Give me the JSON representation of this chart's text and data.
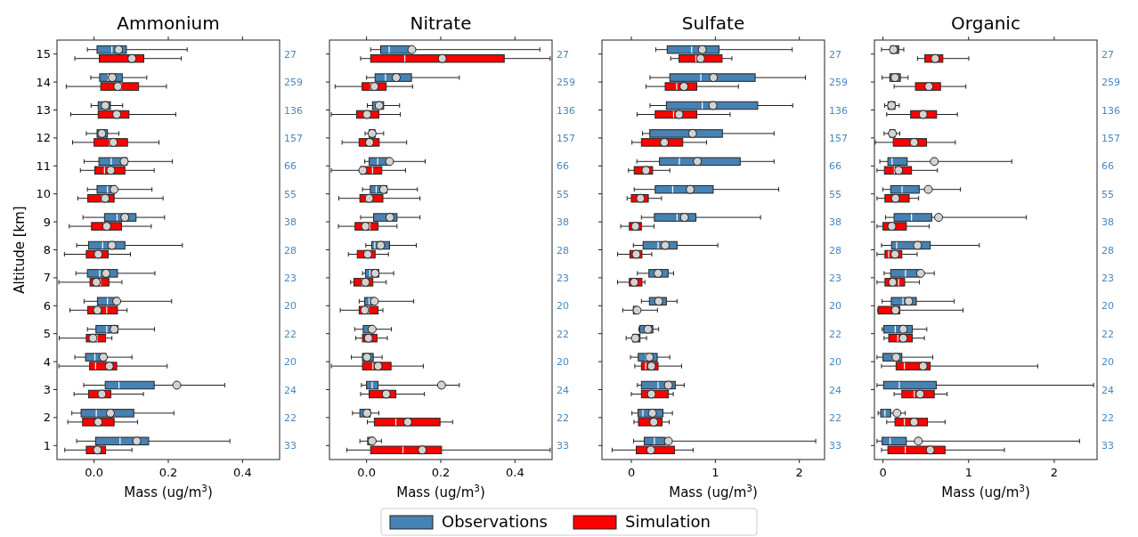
{
  "chart_data": [
    {
      "type": "box",
      "title": "Ammonium",
      "xlabel": "Mass (ug/m$^{3}$)",
      "ylabel": "Altitude [km]",
      "orientation": "horizontal",
      "legend": "bottom",
      "categories": [
        "15",
        "14",
        "13",
        "12",
        "11",
        "10",
        "9",
        "8",
        "7",
        "6",
        "5",
        "4",
        "3",
        "2",
        "1"
      ],
      "xlim": [
        -0.1,
        0.5
      ],
      "xticks": [
        {
          "value": 0,
          "label": "0.0"
        },
        0.2,
        0.4
      ],
      "series": [
        {
          "name": "Observations",
          "color": "#4682b4",
          "boxes": [
            {
              "low": -0.018,
              "q1": 0.008,
              "median": 0.048,
              "q3": 0.087,
              "high": 0.251,
              "mean": 0.066
            },
            {
              "low": -0.009,
              "q1": 0.015,
              "median": 0.038,
              "q3": 0.076,
              "high": 0.142,
              "mean": 0.049
            },
            {
              "low": -0.008,
              "q1": 0.011,
              "median": 0.027,
              "q3": 0.044,
              "high": 0.077,
              "mean": 0.03
            },
            {
              "low": -0.021,
              "q1": 0.008,
              "median": 0.019,
              "q3": 0.036,
              "high": 0.067,
              "mean": 0.021
            },
            {
              "low": -0.027,
              "q1": 0.013,
              "median": 0.046,
              "q3": 0.089,
              "high": 0.211,
              "mean": 0.081
            },
            {
              "low": -0.018,
              "q1": 0.008,
              "median": 0.036,
              "q3": 0.057,
              "high": 0.156,
              "mean": 0.054
            },
            {
              "low": -0.03,
              "q1": 0.028,
              "median": 0.062,
              "q3": 0.113,
              "high": 0.19,
              "mean": 0.083
            },
            {
              "low": -0.047,
              "q1": -0.015,
              "median": 0.023,
              "q3": 0.083,
              "high": 0.238,
              "mean": 0.048
            },
            {
              "low": -0.049,
              "q1": -0.018,
              "median": 0.015,
              "q3": 0.063,
              "high": 0.164,
              "mean": 0.032
            },
            {
              "low": -0.027,
              "q1": 0.009,
              "median": 0.036,
              "q3": 0.065,
              "high": 0.209,
              "mean": 0.061
            },
            {
              "low": -0.018,
              "q1": 0.005,
              "median": 0.034,
              "q3": 0.064,
              "high": 0.163,
              "mean": 0.054
            },
            {
              "low": -0.052,
              "q1": -0.023,
              "median": 0.002,
              "q3": 0.032,
              "high": 0.102,
              "mean": 0.025
            },
            {
              "low": -0.028,
              "q1": 0.03,
              "median": 0.067,
              "q3": 0.162,
              "high": 0.352,
              "mean": 0.223
            },
            {
              "low": -0.06,
              "q1": -0.035,
              "median": 0.006,
              "q3": 0.107,
              "high": 0.215,
              "mean": 0.044
            },
            {
              "low": -0.047,
              "q1": 0.004,
              "median": 0.07,
              "q3": 0.147,
              "high": 0.366,
              "mean": 0.115
            }
          ]
        },
        {
          "name": "Simulation",
          "color": "#ff0000",
          "boxes": [
            {
              "low": -0.052,
              "q1": 0.014,
              "median": 0.1,
              "q3": 0.134,
              "high": 0.235,
              "mean": 0.102
            },
            {
              "low": -0.075,
              "q1": 0.018,
              "median": 0.073,
              "q3": 0.12,
              "high": 0.195,
              "mean": 0.064
            },
            {
              "low": -0.063,
              "q1": 0.011,
              "median": 0.057,
              "q3": 0.094,
              "high": 0.22,
              "mean": 0.061
            },
            {
              "low": -0.058,
              "q1": 0,
              "median": 0.042,
              "q3": 0.09,
              "high": 0.175,
              "mean": 0.052
            },
            {
              "low": -0.037,
              "q1": 0.002,
              "median": 0.028,
              "q3": 0.083,
              "high": 0.162,
              "mean": 0.045
            },
            {
              "low": -0.044,
              "q1": -0.017,
              "median": 0.021,
              "q3": 0.054,
              "high": 0.186,
              "mean": 0.03
            },
            {
              "low": -0.067,
              "q1": -0.007,
              "median": 0.027,
              "q3": 0.074,
              "high": 0.154,
              "mean": 0.034
            },
            {
              "low": -0.08,
              "q1": -0.021,
              "median": 0.008,
              "q3": 0.038,
              "high": 0.098,
              "mean": 0.011
            },
            {
              "low": -0.095,
              "q1": -0.011,
              "median": 0.017,
              "q3": 0.04,
              "high": 0.075,
              "mean": 0.006
            },
            {
              "low": -0.065,
              "q1": -0.017,
              "median": 0.034,
              "q3": 0.063,
              "high": 0.089,
              "mean": 0.009
            },
            {
              "low": -0.094,
              "q1": -0.021,
              "median": 0.008,
              "q3": 0.031,
              "high": 0.048,
              "mean": -0.003
            },
            {
              "low": -0.095,
              "q1": -0.012,
              "median": 0.004,
              "q3": 0.061,
              "high": 0.197,
              "mean": 0.041
            },
            {
              "low": -0.054,
              "q1": -0.015,
              "median": 0.015,
              "q3": 0.045,
              "high": 0.133,
              "mean": 0.021
            },
            {
              "low": -0.071,
              "q1": -0.031,
              "median": 0.011,
              "q3": 0.054,
              "high": 0.117,
              "mean": 0.011
            },
            {
              "low": -0.079,
              "q1": -0.021,
              "median": 0.008,
              "q3": 0.031,
              "high": 0.102,
              "mean": 0.009
            }
          ]
        }
      ],
      "annotations": [
        "27",
        "259",
        "136",
        "157",
        "66",
        "55",
        "38",
        "28",
        "23",
        "20",
        "22",
        "20",
        "24",
        "22",
        "33"
      ]
    },
    {
      "type": "box",
      "title": "Nitrate",
      "xlabel": "Mass (ug/m$^{3}$)",
      "orientation": "horizontal",
      "tick_labels": "x",
      "categories": [
        "15",
        "14",
        "13",
        "12",
        "11",
        "10",
        "9",
        "8",
        "7",
        "6",
        "5",
        "4",
        "3",
        "2",
        "1"
      ],
      "xlim": [
        -0.1,
        0.5
      ],
      "xticks": [
        {
          "value": 0,
          "label": "0.0"
        },
        0.2,
        0.4
      ],
      "series": [
        {
          "color": "#4682b4",
          "boxes": [
            {
              "low": 0.011,
              "q1": 0.038,
              "median": 0.061,
              "q3": 0.118,
              "high": 0.467,
              "mean": 0.122
            },
            {
              "low": 0,
              "q1": 0.023,
              "median": 0.051,
              "q3": 0.121,
              "high": 0.25,
              "mean": 0.08
            },
            {
              "low": 0.002,
              "q1": 0.016,
              "median": 0.026,
              "q3": 0.046,
              "high": 0.089,
              "mean": 0.034
            },
            {
              "low": -0.004,
              "q1": 0.007,
              "median": 0.015,
              "q3": 0.023,
              "high": 0.046,
              "mean": 0.015
            },
            {
              "low": -0.005,
              "q1": 0.007,
              "median": 0.03,
              "q3": 0.062,
              "high": 0.158,
              "mean": 0.062
            },
            {
              "low": -0.011,
              "q1": 0.01,
              "median": 0.026,
              "q3": 0.055,
              "high": 0.137,
              "mean": 0.046
            },
            {
              "low": -0.016,
              "q1": 0.019,
              "median": 0.064,
              "q3": 0.082,
              "high": 0.144,
              "mean": 0.063
            },
            {
              "low": -0.002,
              "q1": 0.014,
              "median": 0.022,
              "q3": 0.062,
              "high": 0.134,
              "mean": 0.038
            },
            {
              "low": -0.011,
              "q1": -0.003,
              "median": 0.009,
              "q3": 0.033,
              "high": 0.073,
              "mean": 0.023
            },
            {
              "low": -0.02,
              "q1": -0.005,
              "median": 0.007,
              "q3": 0.018,
              "high": 0.127,
              "mean": 0.021
            },
            {
              "low": -0.032,
              "q1": -0.009,
              "median": 0.011,
              "q3": 0.018,
              "high": 0.067,
              "mean": 0.015
            },
            {
              "low": -0.041,
              "q1": -0.011,
              "median": -0.001,
              "q3": 0.018,
              "high": 0.042,
              "mean": 0.001
            },
            {
              "low": -0.014,
              "q1": 0,
              "median": 0.015,
              "q3": 0.031,
              "high": 0.25,
              "mean": 0.202
            },
            {
              "low": -0.038,
              "q1": -0.018,
              "median": -0.005,
              "q3": 0.01,
              "high": 0.033,
              "mean": 0.001
            },
            {
              "low": -0.018,
              "q1": 0.003,
              "median": 0.009,
              "q3": 0.018,
              "high": 0.04,
              "mean": 0.015
            }
          ]
        },
        {
          "color": "#ff0000",
          "boxes": [
            {
              "low": -0.016,
              "q1": 0.011,
              "median": 0.103,
              "q3": 0.371,
              "high": 0.495,
              "mean": 0.204
            },
            {
              "low": -0.085,
              "q1": -0.012,
              "median": 0.011,
              "q3": 0.053,
              "high": 0.124,
              "mean": 0.021
            },
            {
              "low": -0.095,
              "q1": -0.027,
              "median": -0.005,
              "q3": 0.033,
              "high": 0.091,
              "mean": 0.001
            },
            {
              "low": -0.066,
              "q1": -0.02,
              "median": 0.003,
              "q3": 0.034,
              "high": 0.108,
              "mean": 0.008
            },
            {
              "low": -0.095,
              "q1": -0.016,
              "median": 0.016,
              "q3": 0.041,
              "high": 0.105,
              "mean": -0.01
            },
            {
              "low": -0.075,
              "q1": -0.018,
              "median": -0.001,
              "q3": 0.044,
              "high": 0.144,
              "mean": 0.007
            },
            {
              "low": -0.076,
              "q1": -0.031,
              "median": 0.009,
              "q3": 0.031,
              "high": 0.082,
              "mean": -0.003
            },
            {
              "low": -0.049,
              "q1": -0.025,
              "median": 0.003,
              "q3": 0.023,
              "high": 0.059,
              "mean": 0.003
            },
            {
              "low": -0.043,
              "q1": -0.034,
              "median": -0.012,
              "q3": 0.017,
              "high": 0.053,
              "mean": -0.003
            },
            {
              "low": -0.071,
              "q1": -0.02,
              "median": 0.005,
              "q3": 0.031,
              "high": 0.044,
              "mean": -0.005
            },
            {
              "low": -0.029,
              "q1": -0.011,
              "median": 0.007,
              "q3": 0.028,
              "high": 0.056,
              "mean": 0.005
            },
            {
              "low": -0.095,
              "q1": -0.011,
              "median": 0.017,
              "q3": 0.066,
              "high": 0.153,
              "mean": 0.031
            },
            {
              "low": -0.016,
              "q1": 0.007,
              "median": 0.049,
              "q3": 0.079,
              "high": 0.156,
              "mean": 0.053
            },
            {
              "low": 0.002,
              "q1": 0.021,
              "median": 0.079,
              "q3": 0.198,
              "high": 0.232,
              "mean": 0.111
            },
            {
              "low": -0.053,
              "q1": 0.011,
              "median": 0.098,
              "q3": 0.202,
              "high": 0.495,
              "mean": 0.15
            }
          ]
        }
      ],
      "annotations": [
        "27",
        "259",
        "136",
        "157",
        "66",
        "55",
        "38",
        "28",
        "23",
        "20",
        "22",
        "20",
        "24",
        "22",
        "33"
      ]
    },
    {
      "type": "box",
      "title": "Sulfate",
      "xlabel": "Mass (ug/m$^{3}$)",
      "orientation": "horizontal",
      "tick_labels": "x",
      "categories": [
        "15",
        "14",
        "13",
        "12",
        "11",
        "10",
        "9",
        "8",
        "7",
        "6",
        "5",
        "4",
        "3",
        "2",
        "1"
      ],
      "xlim": [
        -0.35,
        2.3
      ],
      "xticks": [
        0,
        1,
        2
      ],
      "series": [
        {
          "color": "#4682b4",
          "boxes": [
            {
              "low": 0.291,
              "q1": 0.427,
              "median": 0.718,
              "q3": 1.043,
              "high": 1.915,
              "mean": 0.844
            },
            {
              "low": 0.222,
              "q1": 0.458,
              "median": 0.827,
              "q3": 1.474,
              "high": 2.072,
              "mean": 0.978
            },
            {
              "low": 0.222,
              "q1": 0.417,
              "median": 0.844,
              "q3": 1.504,
              "high": 1.921,
              "mean": 0.971
            },
            {
              "low": 0.133,
              "q1": 0.219,
              "median": 0.718,
              "q3": 1.084,
              "high": 1.699,
              "mean": 0.728
            },
            {
              "low": 0.065,
              "q1": 0.335,
              "median": 0.571,
              "q3": 1.296,
              "high": 1.699,
              "mean": 0.786
            },
            {
              "low": 0.034,
              "q1": 0.284,
              "median": 0.492,
              "q3": 0.974,
              "high": 1.754,
              "mean": 0.701
            },
            {
              "low": 0.12,
              "q1": 0.274,
              "median": 0.544,
              "q3": 0.769,
              "high": 1.538,
              "mean": 0.632
            },
            {
              "low": 0.024,
              "q1": 0.14,
              "median": 0.318,
              "q3": 0.544,
              "high": 1.029,
              "mean": 0.403
            },
            {
              "low": 0.072,
              "q1": 0.209,
              "median": 0.325,
              "q3": 0.438,
              "high": 0.503,
              "mean": 0.318
            },
            {
              "low": 0.12,
              "q1": 0.215,
              "median": 0.325,
              "q3": 0.417,
              "high": 0.544,
              "mean": 0.325
            },
            {
              "low": 0.089,
              "q1": 0.099,
              "median": 0.171,
              "q3": 0.256,
              "high": 0.325,
              "mean": 0.198
            },
            {
              "low": -0.01,
              "q1": 0.082,
              "median": 0.171,
              "q3": 0.308,
              "high": 0.458,
              "mean": 0.215
            },
            {
              "low": 0.072,
              "q1": 0.12,
              "median": 0.318,
              "q3": 0.523,
              "high": 0.629,
              "mean": 0.441
            },
            {
              "low": 0.007,
              "q1": 0.079,
              "median": 0.137,
              "q3": 0.376,
              "high": 0.489,
              "mean": 0.25
            },
            {
              "low": 0.027,
              "q1": 0.154,
              "median": 0.274,
              "q3": 0.403,
              "high": 2.195,
              "mean": 0.441
            }
          ]
        },
        {
          "color": "#ff0000",
          "boxes": [
            {
              "low": 0.468,
              "q1": 0.568,
              "median": 0.769,
              "q3": 1.08,
              "high": 1.197,
              "mean": 0.824
            },
            {
              "low": 0.174,
              "q1": 0.403,
              "median": 0.54,
              "q3": 0.779,
              "high": 1.275,
              "mean": 0.626
            },
            {
              "low": 0.068,
              "q1": 0.284,
              "median": 0.503,
              "q3": 0.779,
              "high": 1.176,
              "mean": 0.568
            },
            {
              "low": 0.007,
              "q1": 0.12,
              "median": 0.369,
              "q3": 0.612,
              "high": 0.896,
              "mean": 0.393
            },
            {
              "low": -0.034,
              "q1": 0.034,
              "median": 0.154,
              "q3": 0.253,
              "high": 0.458,
              "mean": 0.174
            },
            {
              "low": -0.051,
              "q1": 0,
              "median": 0.085,
              "q3": 0.202,
              "high": 0.359,
              "mean": 0.109
            },
            {
              "low": -0.126,
              "q1": -0.024,
              "median": 0.051,
              "q3": 0.12,
              "high": 0.27,
              "mean": 0.048
            },
            {
              "low": -0.164,
              "q1": -0.017,
              "median": 0.051,
              "q3": 0.126,
              "high": 0.243,
              "mean": 0.058
            },
            {
              "low": -0.164,
              "q1": -0.024,
              "median": 0.034,
              "q3": 0.126,
              "high": 0.161,
              "mean": 0.034
            },
            {
              "low": -0.103,
              "q1": 0.024,
              "median": 0.051,
              "q3": 0.062,
              "high": 0.311,
              "mean": 0.068
            },
            {
              "low": -0.062,
              "q1": 0.017,
              "median": 0.051,
              "q3": 0.103,
              "high": 0.181,
              "mean": 0.048
            },
            {
              "low": 0.041,
              "q1": 0.12,
              "median": 0.171,
              "q3": 0.318,
              "high": 0.598,
              "mean": 0.239
            },
            {
              "low": 0,
              "q1": 0.12,
              "median": 0.239,
              "q3": 0.441,
              "high": 0.499,
              "mean": 0.239
            },
            {
              "low": 0.031,
              "q1": 0.085,
              "median": 0.239,
              "q3": 0.366,
              "high": 0.451,
              "mean": 0.267
            },
            {
              "low": -0.229,
              "q1": 0.058,
              "median": 0.205,
              "q3": 0.513,
              "high": 0.735,
              "mean": 0.232
            }
          ]
        }
      ],
      "annotations": [
        "27",
        "259",
        "136",
        "157",
        "66",
        "55",
        "38",
        "28",
        "23",
        "20",
        "22",
        "20",
        "24",
        "22",
        "33"
      ]
    },
    {
      "type": "box",
      "title": "Organic",
      "xlabel": "Mass (ug/m$^{3}$)",
      "orientation": "horizontal",
      "tick_labels": "x",
      "categories": [
        "15",
        "14",
        "13",
        "12",
        "11",
        "10",
        "9",
        "8",
        "7",
        "6",
        "5",
        "4",
        "3",
        "2",
        "1"
      ],
      "xlim": [
        -0.1,
        2.5
      ],
      "xticks": [
        0,
        1,
        2
      ],
      "series": [
        {
          "color": "#4682b4",
          "boxes": [
            {
              "low": -0.017,
              "q1": 0.09,
              "median": 0.116,
              "q3": 0.183,
              "high": 0.243,
              "mean": 0.123
            },
            {
              "low": -0.01,
              "q1": 0.08,
              "median": 0.133,
              "q3": 0.203,
              "high": 0.293,
              "mean": 0.14
            },
            {
              "low": 0.02,
              "q1": 0.06,
              "median": 0.093,
              "q3": 0.14,
              "high": 0.19,
              "mean": 0.1
            },
            {
              "low": 0.013,
              "q1": 0.08,
              "median": 0.106,
              "q3": 0.14,
              "high": 0.196,
              "mean": 0.11
            },
            {
              "low": -0.037,
              "q1": 0.057,
              "median": 0.106,
              "q3": 0.283,
              "high": 1.504,
              "mean": 0.599
            },
            {
              "low": -0.003,
              "q1": 0.09,
              "median": 0.223,
              "q3": 0.423,
              "high": 0.905,
              "mean": 0.529
            },
            {
              "low": 0.03,
              "q1": 0.13,
              "median": 0.333,
              "q3": 0.569,
              "high": 1.674,
              "mean": 0.649
            },
            {
              "low": -0.017,
              "q1": 0.1,
              "median": 0.16,
              "q3": 0.552,
              "high": 1.125,
              "mean": 0.403
            },
            {
              "low": 0.013,
              "q1": 0.09,
              "median": 0.263,
              "q3": 0.439,
              "high": 0.599,
              "mean": 0.439
            },
            {
              "low": -0.01,
              "q1": 0.097,
              "median": 0.233,
              "q3": 0.389,
              "high": 0.832,
              "mean": 0.3
            },
            {
              "low": -0.01,
              "q1": 0.01,
              "median": 0.143,
              "q3": 0.343,
              "high": 0.512,
              "mean": 0.236
            },
            {
              "low": -0.07,
              "q1": 0,
              "median": 0.116,
              "q3": 0.22,
              "high": 0.582,
              "mean": 0.153
            },
            {
              "low": -0.07,
              "q1": 0.007,
              "median": 0.19,
              "q3": 0.622,
              "high": 2.46
            },
            {
              "low": -0.057,
              "q1": -0.027,
              "median": 0.023,
              "q3": 0.09,
              "high": 0.26,
              "mean": 0.163
            },
            {
              "low": -0.07,
              "q1": -0.01,
              "median": 0.083,
              "q3": 0.273,
              "high": 2.296,
              "mean": 0.413
            }
          ]
        },
        {
          "color": "#ff0000",
          "boxes": [
            {
              "low": 0.403,
              "q1": 0.489,
              "median": 0.582,
              "q3": 0.699,
              "high": 1.002,
              "mean": 0.609
            },
            {
              "low": 0.13,
              "q1": 0.379,
              "median": 0.516,
              "q3": 0.672,
              "high": 0.968,
              "mean": 0.536
            },
            {
              "low": 0.043,
              "q1": 0.323,
              "median": 0.449,
              "q3": 0.626,
              "high": 0.869,
              "mean": 0.469
            },
            {
              "low": -0.09,
              "q1": 0.12,
              "median": 0.333,
              "q3": 0.509,
              "high": 0.845,
              "mean": 0.363
            },
            {
              "low": -0.07,
              "q1": 0.017,
              "median": 0.133,
              "q3": 0.333,
              "high": 0.636,
              "mean": 0.183
            },
            {
              "low": -0.07,
              "q1": 0.023,
              "median": 0.133,
              "q3": 0.306,
              "high": 0.416,
              "mean": 0.146
            },
            {
              "low": -0.07,
              "q1": 0,
              "median": 0.1,
              "q3": 0.273,
              "high": 0.539,
              "mean": 0.103
            },
            {
              "low": -0.07,
              "q1": 0.023,
              "median": 0.067,
              "q3": 0.22,
              "high": 0.399,
              "mean": 0.14
            },
            {
              "low": -0.07,
              "q1": 0.023,
              "median": 0.183,
              "q3": 0.253,
              "high": 0.426,
              "mean": 0.113
            },
            {
              "low": -0.06,
              "q1": -0.057,
              "median": 0.116,
              "q3": 0.196,
              "high": 0.935,
              "mean": 0.146
            },
            {
              "low": 0.013,
              "q1": 0.067,
              "median": 0.173,
              "q3": 0.343,
              "high": 0.483,
              "mean": 0.236
            },
            {
              "low": -0.017,
              "q1": 0.153,
              "median": 0.25,
              "q3": 0.552,
              "high": 1.807,
              "mean": 0.469
            },
            {
              "low": 0.13,
              "q1": 0.22,
              "median": 0.366,
              "q3": 0.599,
              "high": 0.749,
              "mean": 0.433
            },
            {
              "low": 0.043,
              "q1": 0.14,
              "median": 0.25,
              "q3": 0.519,
              "high": 0.725,
              "mean": 0.363
            },
            {
              "low": -0.017,
              "q1": 0.057,
              "median": 0.26,
              "q3": 0.725,
              "high": 1.418,
              "mean": 0.552
            }
          ]
        }
      ],
      "annotations": [
        "27",
        "259",
        "136",
        "157",
        "66",
        "55",
        "38",
        "28",
        "23",
        "20",
        "22",
        "20",
        "24",
        "22",
        "33"
      ]
    }
  ]
}
